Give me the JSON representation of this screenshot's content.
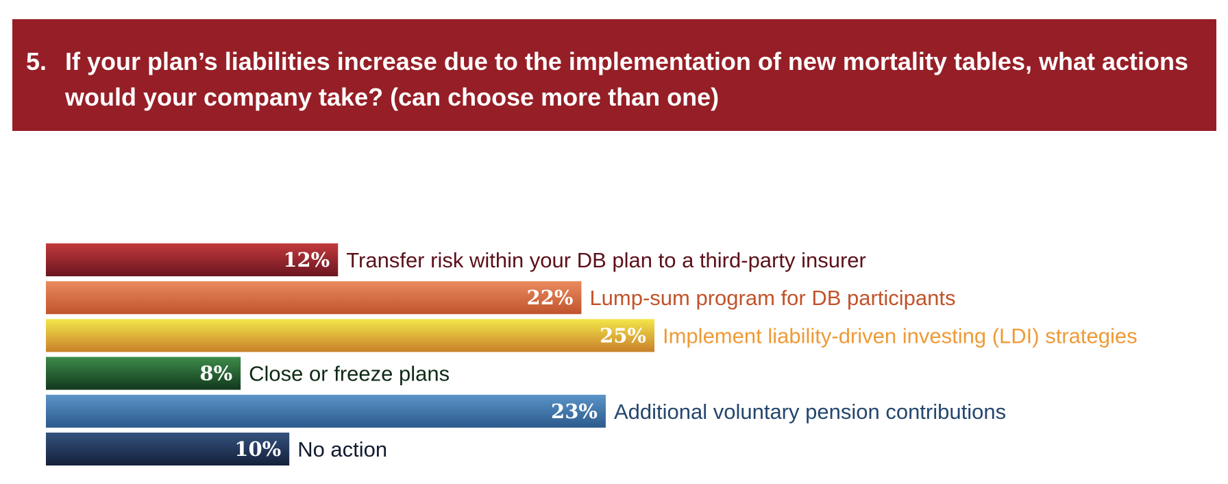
{
  "question": {
    "number": "5.",
    "text": "If your plan’s liabilities increase due to the implementation of new mortality tables, what actions would your company take? (can choose more than one)"
  },
  "colors": {
    "header_bg": "#961e26"
  },
  "chart_data": {
    "type": "bar",
    "orientation": "horizontal",
    "title": "If your plan’s liabilities increase due to the implementation of new mortality tables, what actions would your company take? (can choose more than one)",
    "xlim": [
      0,
      25
    ],
    "unit": "%",
    "categories": [
      "Transfer risk within your DB plan to a third-party insurer",
      "Lump-sum program for DB participants",
      "Implement liability-driven investing (LDI) strategies",
      "Close or freeze plans",
      "Additional voluntary pension contributions",
      "No action"
    ],
    "values": [
      12,
      22,
      25,
      8,
      23,
      10
    ],
    "value_labels": [
      "12%",
      "22%",
      "25%",
      "8%",
      "23%",
      "10%"
    ],
    "bar_colors": [
      {
        "top": "#c23a3c",
        "bottom": "#6a1520",
        "label": "#5c1018"
      },
      {
        "top": "#ea8a5e",
        "bottom": "#c0542c",
        "label": "#c2522a"
      },
      {
        "top": "#f3e64a",
        "bottom": "#c8802a",
        "label": "#ee9a36"
      },
      {
        "top": "#3c8c4a",
        "bottom": "#12381c",
        "label": "#0e2a16"
      },
      {
        "top": "#5a94c8",
        "bottom": "#2c5a8c",
        "label": "#24466e"
      },
      {
        "top": "#34527e",
        "bottom": "#14203a",
        "label": "#111a2e"
      }
    ]
  }
}
